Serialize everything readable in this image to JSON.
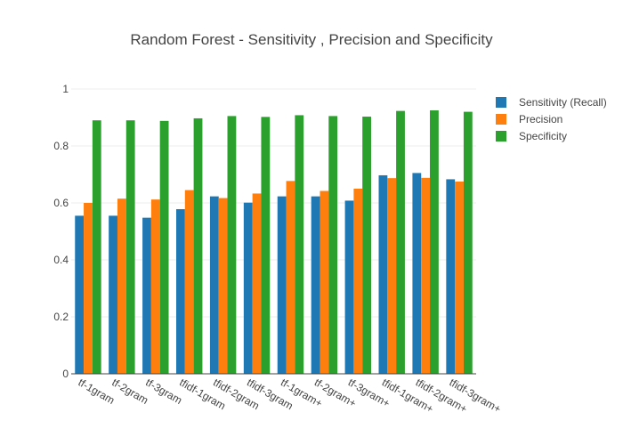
{
  "chart_data": {
    "type": "bar",
    "title": "Random Forest - Sensitivity , Precision and Specificity",
    "xlabel": "",
    "ylabel": "",
    "ylim": [
      0,
      1
    ],
    "yticks": [
      "0",
      "0.2",
      "0.4",
      "0.6",
      "0.8",
      "1"
    ],
    "ytick_values": [
      0,
      0.2,
      0.4,
      0.6,
      0.8,
      1
    ],
    "categories": [
      "tf-1gram",
      "tf-2gram",
      "tf-3gram",
      "tfidf-1gram",
      "tfidf-2gram",
      "tfidf-3gram",
      "tf-1gram+",
      "tf-2gram+",
      "tf-3gram+",
      "tfidf-1gram+",
      "tfidf-2gram+",
      "tfidf-3gram+"
    ],
    "series": [
      {
        "name": "Sensitivity (Recall)",
        "color": "#1f77b4",
        "values": [
          0.555,
          0.555,
          0.548,
          0.578,
          0.623,
          0.601,
          0.623,
          0.623,
          0.608,
          0.697,
          0.705,
          0.683
        ]
      },
      {
        "name": "Precision",
        "color": "#ff7f0e",
        "values": [
          0.6,
          0.615,
          0.612,
          0.645,
          0.617,
          0.633,
          0.677,
          0.642,
          0.65,
          0.687,
          0.688,
          0.675
        ]
      },
      {
        "name": "Specificity",
        "color": "#2ca02c",
        "values": [
          0.89,
          0.89,
          0.888,
          0.897,
          0.905,
          0.902,
          0.908,
          0.905,
          0.903,
          0.923,
          0.925,
          0.92
        ]
      }
    ],
    "legend": "top-right"
  }
}
